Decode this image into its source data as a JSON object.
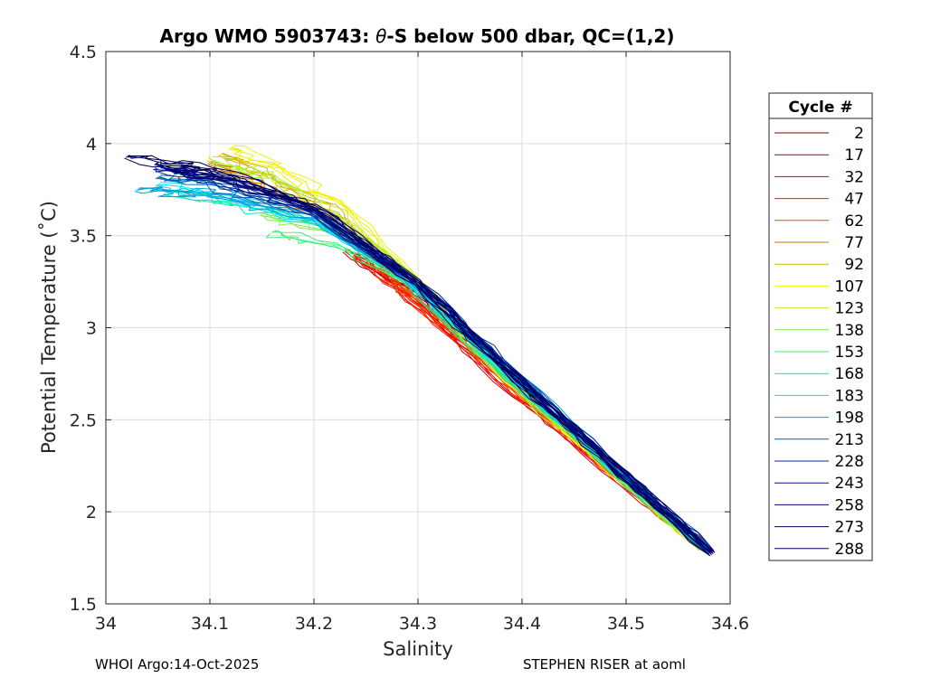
{
  "chart_data": {
    "type": "line",
    "title_prefix": "Argo WMO 5903743: ",
    "title_theta": "θ",
    "title_suffix": "-S below 500 dbar,  QC=(1,2)",
    "xlabel": "Salinity",
    "ylabel": "Potential Temperature (˚C)",
    "xlim": [
      34,
      34.6
    ],
    "ylim": [
      1.5,
      4.5
    ],
    "xticks": [
      34,
      34.1,
      34.2,
      34.3,
      34.4,
      34.5,
      34.6
    ],
    "xtick_labels": [
      "34",
      "34.1",
      "34.2",
      "34.3",
      "34.4",
      "34.5",
      "34.6"
    ],
    "yticks": [
      1.5,
      2,
      2.5,
      3,
      3.5,
      4,
      4.5
    ],
    "ytick_labels": [
      "1.5",
      "2",
      "2.5",
      "3",
      "3.5",
      "4",
      "4.5"
    ],
    "grid": true,
    "legend": {
      "title": "Cycle #",
      "placement": "right outside",
      "entries": [
        {
          "label": "2",
          "color": "#800000"
        },
        {
          "label": "17",
          "color": "#b00000"
        },
        {
          "label": "32",
          "color": "#e00000"
        },
        {
          "label": "47",
          "color": "#ff1400"
        },
        {
          "label": "62",
          "color": "#ff4600"
        },
        {
          "label": "77",
          "color": "#c87800"
        },
        {
          "label": "92",
          "color": "#d2b400"
        },
        {
          "label": "107",
          "color": "#f0f000"
        },
        {
          "label": "123",
          "color": "#b4f032"
        },
        {
          "label": "138",
          "color": "#78f050"
        },
        {
          "label": "153",
          "color": "#3cf078"
        },
        {
          "label": "168",
          "color": "#14e6b4"
        },
        {
          "label": "183",
          "color": "#00dcf0"
        },
        {
          "label": "198",
          "color": "#00a0dc"
        },
        {
          "label": "213",
          "color": "#0064b4"
        },
        {
          "label": "228",
          "color": "#0032a0"
        },
        {
          "label": "243",
          "color": "#00148c"
        },
        {
          "label": "258",
          "color": "#000a78"
        },
        {
          "label": "273",
          "color": "#000050"
        },
        {
          "label": "288",
          "color": "#00006e"
        }
      ]
    },
    "series": [
      {
        "name": "2",
        "color": "#800000",
        "points": [
          [
            34.583,
            1.77
          ],
          [
            34.48,
            2.28
          ],
          [
            34.38,
            2.78
          ],
          [
            34.3,
            3.2
          ],
          [
            34.25,
            3.4
          ]
        ]
      },
      {
        "name": "17",
        "color": "#b00000",
        "points": [
          [
            34.578,
            1.8
          ],
          [
            34.47,
            2.3
          ],
          [
            34.37,
            2.8
          ],
          [
            34.29,
            3.2
          ],
          [
            34.24,
            3.38
          ]
        ]
      },
      {
        "name": "32",
        "color": "#e00000",
        "points": [
          [
            34.576,
            1.8
          ],
          [
            34.46,
            2.32
          ],
          [
            34.36,
            2.8
          ],
          [
            34.28,
            3.22
          ],
          [
            34.23,
            3.42
          ]
        ]
      },
      {
        "name": "47",
        "color": "#ff1400",
        "points": [
          [
            34.574,
            1.81
          ],
          [
            34.46,
            2.33
          ],
          [
            34.36,
            2.82
          ],
          [
            34.28,
            3.22
          ],
          [
            34.24,
            3.4
          ]
        ]
      },
      {
        "name": "62",
        "color": "#ff4600",
        "points": [
          [
            34.572,
            1.82
          ],
          [
            34.47,
            2.32
          ],
          [
            34.37,
            2.8
          ],
          [
            34.29,
            3.18
          ],
          [
            34.25,
            3.36
          ]
        ]
      },
      {
        "name": "77",
        "color": "#c87800",
        "points": [
          [
            34.575,
            1.8
          ],
          [
            34.47,
            2.3
          ],
          [
            34.37,
            2.8
          ],
          [
            34.29,
            3.22
          ],
          [
            34.22,
            3.55
          ],
          [
            34.15,
            3.78
          ],
          [
            34.1,
            3.9
          ]
        ]
      },
      {
        "name": "92",
        "color": "#d2b400",
        "points": [
          [
            34.573,
            1.8
          ],
          [
            34.47,
            2.3
          ],
          [
            34.37,
            2.8
          ],
          [
            34.3,
            3.2
          ],
          [
            34.23,
            3.58
          ],
          [
            34.16,
            3.82
          ],
          [
            34.11,
            3.94
          ]
        ]
      },
      {
        "name": "107",
        "color": "#f0f000",
        "points": [
          [
            34.57,
            1.82
          ],
          [
            34.47,
            2.3
          ],
          [
            34.37,
            2.8
          ],
          [
            34.3,
            3.25
          ],
          [
            34.24,
            3.6
          ],
          [
            34.17,
            3.85
          ],
          [
            34.12,
            3.98
          ]
        ]
      },
      {
        "name": "123",
        "color": "#b4f032",
        "points": [
          [
            34.572,
            1.8
          ],
          [
            34.47,
            2.32
          ],
          [
            34.37,
            2.8
          ],
          [
            34.3,
            3.25
          ],
          [
            34.23,
            3.58
          ],
          [
            34.16,
            3.82
          ],
          [
            34.1,
            3.92
          ]
        ]
      },
      {
        "name": "138",
        "color": "#78f050",
        "points": [
          [
            34.575,
            1.8
          ],
          [
            34.47,
            2.32
          ],
          [
            34.37,
            2.82
          ],
          [
            34.3,
            3.22
          ],
          [
            34.23,
            3.5
          ],
          [
            34.15,
            3.62
          ]
        ]
      },
      {
        "name": "153",
        "color": "#3cf078",
        "points": [
          [
            34.575,
            1.8
          ],
          [
            34.47,
            2.31
          ],
          [
            34.37,
            2.82
          ],
          [
            34.29,
            3.25
          ],
          [
            34.22,
            3.45
          ],
          [
            34.16,
            3.52
          ]
        ]
      },
      {
        "name": "168",
        "color": "#14e6b4",
        "points": [
          [
            34.576,
            1.8
          ],
          [
            34.47,
            2.32
          ],
          [
            34.37,
            2.82
          ],
          [
            34.29,
            3.25
          ],
          [
            34.21,
            3.56
          ],
          [
            34.12,
            3.68
          ],
          [
            34.06,
            3.74
          ]
        ]
      },
      {
        "name": "183",
        "color": "#00dcf0",
        "points": [
          [
            34.577,
            1.8
          ],
          [
            34.47,
            2.32
          ],
          [
            34.37,
            2.83
          ],
          [
            34.29,
            3.26
          ],
          [
            34.2,
            3.58
          ],
          [
            34.1,
            3.72
          ],
          [
            34.05,
            3.78
          ]
        ]
      },
      {
        "name": "198",
        "color": "#00a0dc",
        "points": [
          [
            34.578,
            1.8
          ],
          [
            34.48,
            2.3
          ],
          [
            34.38,
            2.82
          ],
          [
            34.29,
            3.26
          ],
          [
            34.2,
            3.6
          ],
          [
            34.1,
            3.72
          ],
          [
            34.03,
            3.75
          ]
        ]
      },
      {
        "name": "213",
        "color": "#0064b4",
        "points": [
          [
            34.579,
            1.79
          ],
          [
            34.48,
            2.3
          ],
          [
            34.38,
            2.82
          ],
          [
            34.3,
            3.24
          ],
          [
            34.2,
            3.62
          ],
          [
            34.1,
            3.78
          ],
          [
            34.05,
            3.82
          ]
        ]
      },
      {
        "name": "228",
        "color": "#0032a0",
        "points": [
          [
            34.58,
            1.79
          ],
          [
            34.48,
            2.3
          ],
          [
            34.38,
            2.82
          ],
          [
            34.3,
            3.24
          ],
          [
            34.2,
            3.62
          ],
          [
            34.1,
            3.8
          ],
          [
            34.05,
            3.86
          ]
        ]
      },
      {
        "name": "243",
        "color": "#00148c",
        "points": [
          [
            34.581,
            1.78
          ],
          [
            34.48,
            2.3
          ],
          [
            34.38,
            2.81
          ],
          [
            34.3,
            3.24
          ],
          [
            34.2,
            3.63
          ],
          [
            34.1,
            3.82
          ],
          [
            34.05,
            3.88
          ]
        ]
      },
      {
        "name": "258",
        "color": "#000a78",
        "points": [
          [
            34.582,
            1.78
          ],
          [
            34.48,
            2.3
          ],
          [
            34.38,
            2.8
          ],
          [
            34.3,
            3.24
          ],
          [
            34.2,
            3.64
          ],
          [
            34.1,
            3.84
          ],
          [
            34.05,
            3.9
          ]
        ]
      },
      {
        "name": "273",
        "color": "#000050",
        "points": [
          [
            34.583,
            1.77
          ],
          [
            34.48,
            2.29
          ],
          [
            34.38,
            2.8
          ],
          [
            34.3,
            3.25
          ],
          [
            34.2,
            3.66
          ],
          [
            34.1,
            3.86
          ],
          [
            34.02,
            3.93
          ]
        ]
      },
      {
        "name": "288",
        "color": "#00006e",
        "points": [
          [
            34.583,
            1.77
          ],
          [
            34.48,
            2.29
          ],
          [
            34.38,
            2.8
          ],
          [
            34.3,
            3.24
          ],
          [
            34.21,
            3.62
          ],
          [
            34.12,
            3.82
          ],
          [
            34.06,
            3.86
          ]
        ]
      }
    ]
  },
  "footer": {
    "left": "WHOI Argo:14-Oct-2025",
    "right": "STEPHEN RISER at aoml"
  }
}
